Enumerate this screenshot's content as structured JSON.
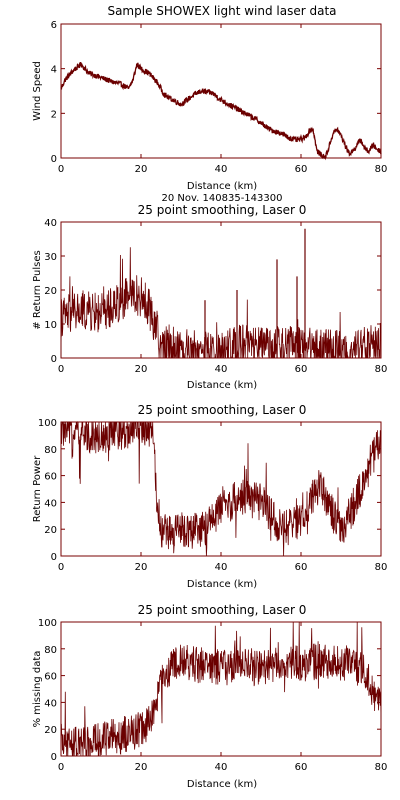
{
  "colors": {
    "data": "#6b0000",
    "axes": "#7a0000",
    "text": "#000000",
    "background": "#ffffff"
  },
  "chart_data": [
    {
      "type": "line",
      "title": "Sample SHOWEX light wind laser data",
      "subtitle": "",
      "xlabel": "Distance (km)",
      "ylabel": "Wind Speed",
      "xlim": [
        0,
        80
      ],
      "ylim": [
        0,
        6
      ],
      "xticks": [
        0,
        20,
        40,
        60,
        80
      ],
      "yticks": [
        0,
        2,
        4,
        6
      ],
      "noise": 0.12,
      "series": [
        {
          "x": [
            0,
            1,
            3,
            5,
            7,
            10,
            13,
            15,
            17,
            18,
            19,
            20,
            22,
            24,
            26,
            28,
            30,
            33,
            35,
            38,
            40,
            43,
            46,
            49,
            52,
            55,
            57,
            59,
            61,
            62,
            63,
            64,
            65,
            66,
            67,
            68,
            69,
            70,
            71,
            72,
            73,
            74,
            75,
            76,
            77,
            78,
            79,
            80
          ],
          "y": [
            3.1,
            3.5,
            3.9,
            4.2,
            3.8,
            3.6,
            3.4,
            3.3,
            3.1,
            3.5,
            4.2,
            4.0,
            3.8,
            3.4,
            2.8,
            2.6,
            2.4,
            2.8,
            3.0,
            2.9,
            2.6,
            2.3,
            2.0,
            1.7,
            1.3,
            1.1,
            0.9,
            0.8,
            0.9,
            1.2,
            1.3,
            0.3,
            0.15,
            0.0,
            0.5,
            1.1,
            1.3,
            1.0,
            0.6,
            0.2,
            0.3,
            0.6,
            0.8,
            0.4,
            0.3,
            0.6,
            0.4,
            0.3
          ]
        }
      ]
    },
    {
      "type": "line",
      "title": "25 point smoothing, Laser 0",
      "subtitle": "20 Nov. 140835-143300",
      "xlabel": "Distance (km)",
      "ylabel": "# Return Pulses",
      "xlim": [
        0,
        80
      ],
      "ylim": [
        0,
        40
      ],
      "xticks": [
        0,
        20,
        40,
        60,
        80
      ],
      "yticks": [
        0,
        10,
        20,
        30,
        40
      ],
      "noise": 6,
      "series": [
        {
          "x": [
            0,
            5,
            10,
            15,
            18,
            20,
            22,
            24,
            25,
            27,
            30,
            35,
            40,
            45,
            50,
            55,
            60,
            65,
            70,
            75,
            80
          ],
          "y": [
            12,
            14,
            13,
            17,
            19,
            18,
            15,
            8,
            3,
            4,
            3,
            2,
            2,
            4,
            3,
            3,
            4,
            3,
            2,
            3,
            5
          ]
        }
      ],
      "spikes": [
        {
          "x": 61,
          "y": 38
        },
        {
          "x": 54,
          "y": 29
        },
        {
          "x": 44,
          "y": 20
        },
        {
          "x": 59,
          "y": 24
        },
        {
          "x": 36,
          "y": 17
        }
      ]
    },
    {
      "type": "line",
      "title": "25 point smoothing, Laser 0",
      "subtitle": "",
      "xlabel": "Distance (km)",
      "ylabel": "Return Power",
      "xlim": [
        0,
        80
      ],
      "ylim": [
        0,
        100
      ],
      "xticks": [
        0,
        20,
        40,
        60,
        80
      ],
      "yticks": [
        0,
        20,
        40,
        60,
        80,
        100
      ],
      "noise": 14,
      "series": [
        {
          "x": [
            0,
            5,
            10,
            15,
            20,
            23,
            24,
            25,
            28,
            30,
            35,
            40,
            45,
            50,
            53,
            55,
            60,
            62,
            65,
            68,
            70,
            72,
            75,
            78,
            80
          ],
          "y": [
            95,
            92,
            90,
            93,
            96,
            95,
            40,
            20,
            15,
            20,
            18,
            35,
            45,
            40,
            30,
            20,
            25,
            40,
            55,
            30,
            18,
            30,
            50,
            75,
            85
          ]
        }
      ]
    },
    {
      "type": "line",
      "title": "25 point smoothing, Laser 0",
      "subtitle": "",
      "xlabel": "Distance (km)",
      "ylabel": "% missing data",
      "xlim": [
        0,
        80
      ],
      "ylim": [
        0,
        100
      ],
      "xticks": [
        0,
        20,
        40,
        60,
        80
      ],
      "yticks": [
        0,
        20,
        40,
        60,
        80,
        100
      ],
      "noise": 14,
      "series": [
        {
          "x": [
            0,
            5,
            10,
            15,
            20,
            22,
            24,
            25,
            27,
            30,
            35,
            40,
            45,
            50,
            55,
            60,
            65,
            70,
            75,
            78,
            80
          ],
          "y": [
            10,
            8,
            12,
            15,
            20,
            25,
            40,
            55,
            65,
            70,
            68,
            66,
            68,
            65,
            70,
            68,
            72,
            70,
            65,
            50,
            35
          ]
        }
      ]
    }
  ]
}
